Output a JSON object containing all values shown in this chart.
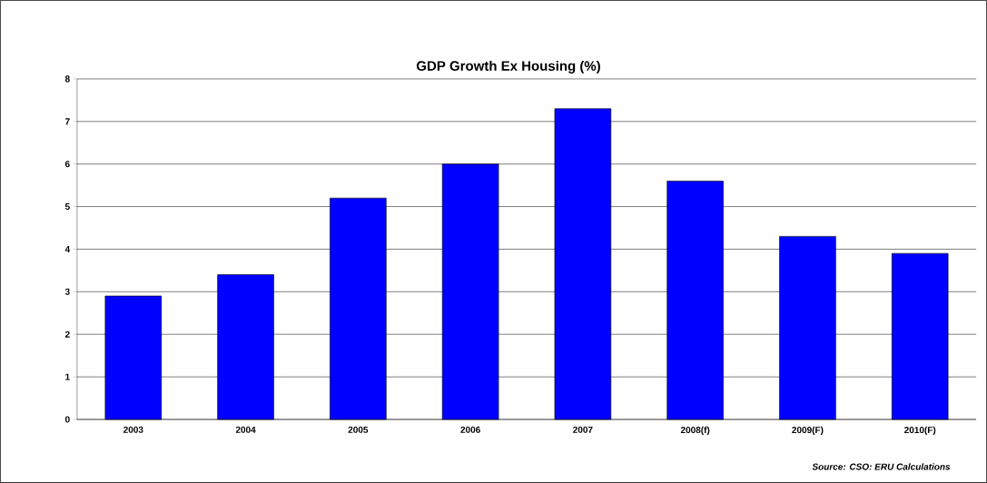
{
  "chart_data": {
    "type": "bar",
    "title": "GDP Growth Ex Housing (%)",
    "categories": [
      "2003",
      "2004",
      "2005",
      "2006",
      "2007",
      "2008(f)",
      "2009(F)",
      "2010(F)"
    ],
    "values": [
      2.9,
      3.4,
      5.2,
      6.0,
      7.3,
      5.6,
      4.3,
      3.9
    ],
    "color": "#0000ff",
    "ylim": [
      0,
      8
    ],
    "yticks": [
      0,
      1,
      2,
      3,
      4,
      5,
      6,
      7,
      8
    ],
    "grid": "y",
    "annotations": [
      "Source: CSO: ERU Calculations"
    ]
  }
}
